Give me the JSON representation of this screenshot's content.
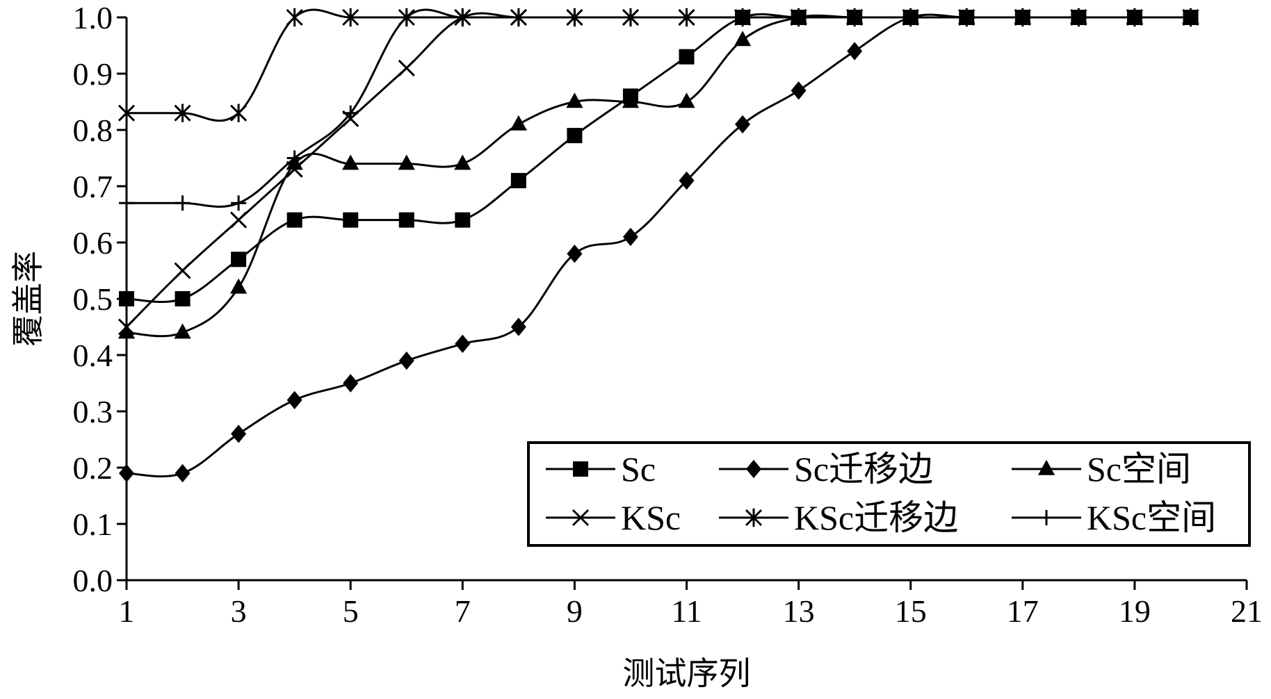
{
  "chart_data": {
    "type": "line",
    "title": "",
    "xlabel": "测试序列",
    "ylabel": "覆盖率",
    "xlim": [
      1,
      21
    ],
    "ylim": [
      0.0,
      1.0
    ],
    "x_ticks": [
      "1",
      "3",
      "5",
      "7",
      "9",
      "11",
      "13",
      "15",
      "17",
      "19",
      "21"
    ],
    "y_ticks": [
      "0.0",
      "0.1",
      "0.2",
      "0.3",
      "0.4",
      "0.5",
      "0.6",
      "0.7",
      "0.8",
      "0.9",
      "1.0"
    ],
    "grid": false,
    "legend_position": "lower-right",
    "x": [
      1,
      2,
      3,
      4,
      5,
      6,
      7,
      8,
      9,
      10,
      11,
      12,
      13,
      14,
      15,
      16,
      17,
      18,
      19,
      20
    ],
    "series": [
      {
        "name": "Sc",
        "marker": "square",
        "values": [
          0.5,
          0.5,
          0.57,
          0.64,
          0.64,
          0.64,
          0.64,
          0.71,
          0.79,
          0.86,
          0.93,
          1.0,
          1.0,
          1.0,
          1.0,
          1.0,
          1.0,
          1.0,
          1.0,
          1.0
        ]
      },
      {
        "name": "Sc迁移边",
        "marker": "diamond",
        "values": [
          0.19,
          0.19,
          0.26,
          0.32,
          0.35,
          0.39,
          0.42,
          0.45,
          0.58,
          0.61,
          0.71,
          0.81,
          0.87,
          0.94,
          1.0,
          1.0,
          1.0,
          1.0,
          1.0,
          1.0
        ]
      },
      {
        "name": "Sc空间",
        "marker": "triangle",
        "values": [
          0.44,
          0.44,
          0.52,
          0.74,
          0.74,
          0.74,
          0.74,
          0.81,
          0.85,
          0.85,
          0.85,
          0.96,
          1.0,
          1.0,
          1.0,
          1.0,
          1.0,
          1.0,
          1.0,
          1.0
        ]
      },
      {
        "name": "KSc",
        "marker": "x",
        "values": [
          0.45,
          0.55,
          0.64,
          0.73,
          0.82,
          0.91,
          1.0,
          1.0,
          1.0,
          1.0,
          1.0,
          1.0,
          1.0,
          1.0,
          1.0,
          1.0,
          1.0,
          1.0,
          1.0,
          1.0
        ]
      },
      {
        "name": "KSc迁移边",
        "marker": "asterisk",
        "values": [
          0.83,
          0.83,
          0.83,
          1.0,
          1.0,
          1.0,
          1.0,
          1.0,
          1.0,
          1.0,
          1.0,
          1.0,
          1.0,
          1.0,
          1.0,
          1.0,
          1.0,
          1.0,
          1.0,
          1.0
        ]
      },
      {
        "name": "KSc空间",
        "marker": "plus",
        "values": [
          0.67,
          0.67,
          0.67,
          0.75,
          0.83,
          1.0,
          1.0,
          1.0,
          1.0,
          1.0,
          1.0,
          1.0,
          1.0,
          1.0,
          1.0,
          1.0,
          1.0,
          1.0,
          1.0,
          1.0
        ]
      }
    ]
  }
}
